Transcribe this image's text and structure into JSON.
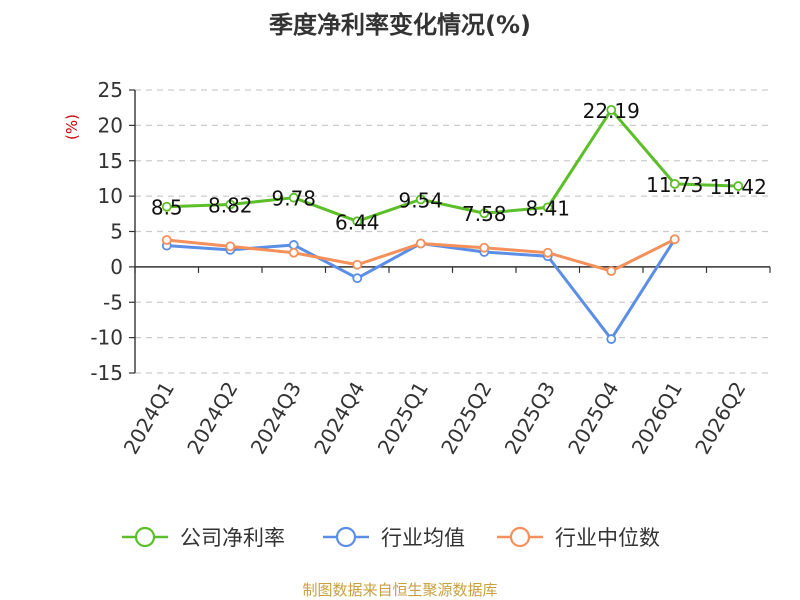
{
  "chart_data": {
    "type": "line",
    "title": "季度净利率变化情况(%)",
    "ylabel": "(%)",
    "ylim": [
      -15,
      25
    ],
    "yticks": [
      25,
      20,
      15,
      10,
      5,
      0,
      -5,
      -10,
      -15
    ],
    "grid": "horizontal-dashed",
    "legend": "bottom",
    "categories": [
      "2024Q1",
      "2024Q2",
      "2024Q3",
      "2024Q4",
      "2025Q1",
      "2025Q2",
      "2025Q3",
      "2025Q4",
      "2026Q1",
      "2026Q2"
    ],
    "series": [
      {
        "name": "公司净利率",
        "color": "#5cbf2a",
        "values": [
          8.5,
          8.82,
          9.78,
          6.44,
          9.54,
          7.58,
          8.41,
          22.19,
          11.73,
          11.42
        ],
        "labels": [
          "8.5",
          "8.82",
          "9.78",
          "6.44",
          "9.54",
          "7.58",
          "8.41",
          "22.19",
          "11.73",
          "11.42"
        ]
      },
      {
        "name": "行业均值",
        "color": "#5b8ee6",
        "values": [
          3.0,
          2.4,
          3.1,
          -1.6,
          3.3,
          2.1,
          1.5,
          -10.2,
          3.9,
          null
        ]
      },
      {
        "name": "行业中位数",
        "color": "#f5905a",
        "values": [
          3.8,
          2.9,
          2.0,
          0.3,
          3.3,
          2.7,
          2.0,
          -0.6,
          3.9,
          null
        ]
      }
    ]
  },
  "source": "制图数据来自恒生聚源数据库"
}
